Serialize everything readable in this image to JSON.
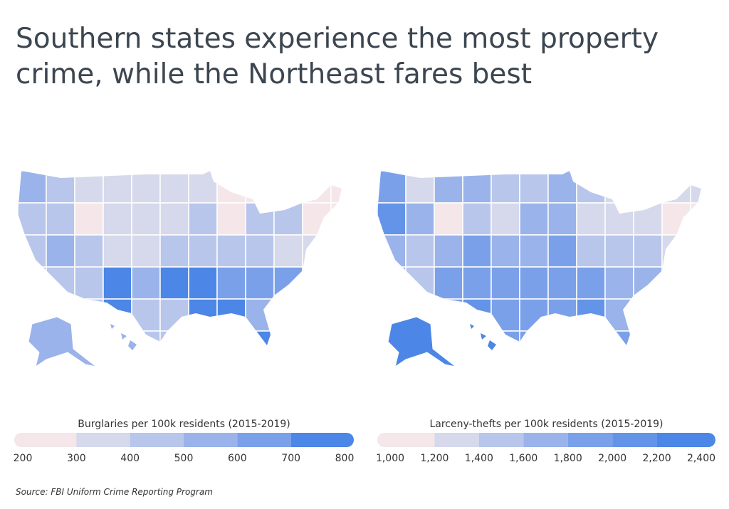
{
  "title": "Southern states experience the most property crime, while the Northeast fares best",
  "maps": [
    {
      "legend_title": "Burglaries per 100k residents (2015-2019)",
      "ticks": [
        200,
        300,
        400,
        500,
        600,
        700,
        800
      ],
      "colors": [
        "#f4e6e9",
        "#d6d8eb",
        "#b8c6eb",
        "#9ab3ea",
        "#7ba0ea",
        "#4c86e6"
      ]
    },
    {
      "legend_title": "Larceny-thefts per 100k residents (2015-2019)",
      "ticks": [
        {
          "value": 1000,
          "label": "1,000"
        },
        {
          "value": 1200,
          "label": "1,200"
        },
        {
          "value": 1400,
          "label": "1,400"
        },
        {
          "value": 1600,
          "label": "1,600"
        },
        {
          "value": 1800,
          "label": "1,800"
        },
        {
          "value": 2000,
          "label": "2,000"
        },
        {
          "value": 2200,
          "label": "2,200"
        },
        {
          "value": 2400,
          "label": "2,400"
        }
      ],
      "colors": [
        "#f4e6e9",
        "#d6d8eb",
        "#b8c6eb",
        "#9ab3ea",
        "#7ba0ea",
        "#6394e8",
        "#4c86e6"
      ]
    }
  ],
  "source": "Source:  FBI Uniform Crime Reporting Program"
}
